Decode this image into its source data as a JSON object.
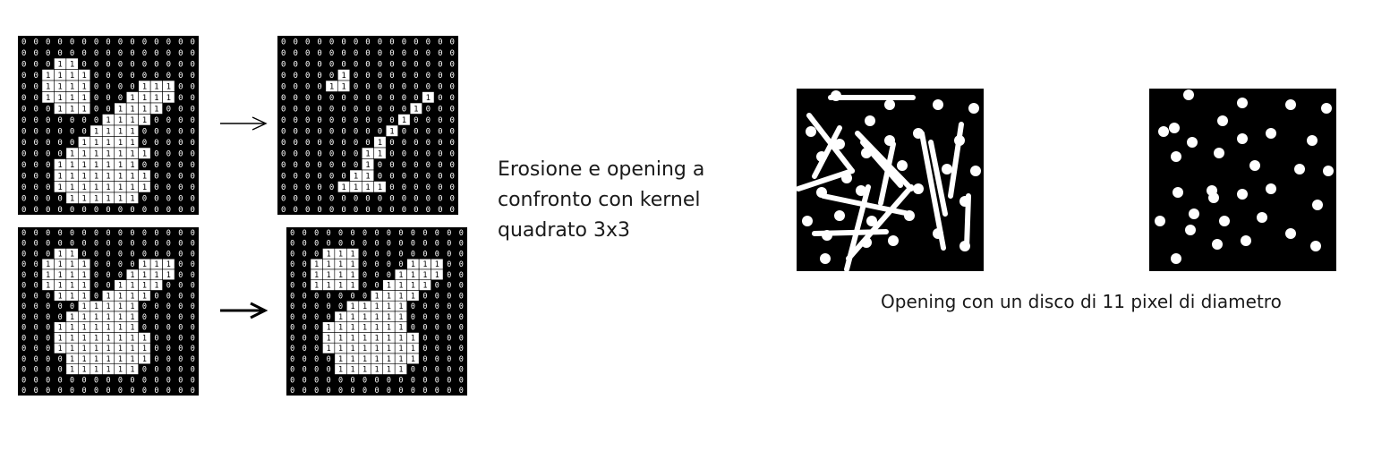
{
  "captions": {
    "left": {
      "line1": "Erosione e opening a",
      "line2": "confronto con kernel",
      "line3": "quadrato 3x3"
    },
    "right": "Opening con un disco di 11 pixel di diametro"
  },
  "binary_grids": {
    "original": [
      "000000000000000",
      "000000000000000",
      "000110000000000",
      "001111000000000",
      "001111000011100",
      "001111000111100",
      "000111001111000",
      "000000011110000",
      "000000111100000",
      "000001111100000",
      "000011111110000",
      "000111111100000",
      "000111111110000",
      "000111111110000",
      "000011111100000",
      "000000000000000"
    ],
    "eroded": [
      "000000000000000",
      "000000000000000",
      "000000000000000",
      "000001000000000",
      "000011000000000",
      "000000000000100",
      "000000000001000",
      "000000000010000",
      "000000000100000",
      "000000001000000",
      "000000011000000",
      "000000010000000",
      "000000110000000",
      "000001111000000",
      "000000000000000",
      "000000000000000"
    ],
    "bottom_original": [
      "000000000000000",
      "000000000000000",
      "000110000000000",
      "001111000011100",
      "001111000111100",
      "001111001111000",
      "000111011110000",
      "000001111100000",
      "000011111100000",
      "000111111100000",
      "000111111110000",
      "000111111110000",
      "000011111110000",
      "000011111100000",
      "000000000000000",
      "000000000000000"
    ],
    "opened": [
      "000000000000000",
      "000000000000000",
      "000111000000000",
      "001111000011100",
      "001111000111100",
      "001111001111000",
      "000000011110000",
      "000001111100000",
      "000011111100000",
      "000111111100000",
      "000111111110000",
      "000111111110000",
      "000011111110000",
      "000011111100000",
      "000000000000000",
      "000000000000000"
    ]
  },
  "colors": {
    "background": "#ffffff",
    "image_black": "#000000",
    "foreground_white": "#ffffff",
    "text": "#1a1a1a"
  }
}
